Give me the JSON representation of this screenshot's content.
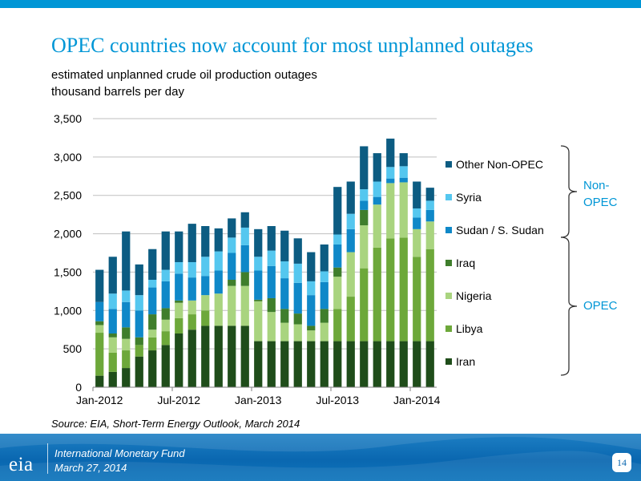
{
  "header": {
    "title": "OPEC countries now account for most unplanned outages",
    "subtitle_line1": "estimated unplanned crude oil production outages",
    "subtitle_line2": "thousand barrels per day"
  },
  "source": "Source: EIA, Short-Term Energy Outlook, March 2014",
  "footer": {
    "logo_text": "eia",
    "line1": "International Monetary Fund",
    "line2": "March 27, 2014",
    "page_number": "14"
  },
  "colors": {
    "accent": "#0096d6",
    "iran": "#1f4d1a",
    "libya": "#6da83a",
    "nigeria": "#a9d47f",
    "iraq": "#3f7e2c",
    "sudan": "#0f88c8",
    "syria": "#55c7ef",
    "other_non_opec": "#0c5c82",
    "bracket": "#333333",
    "group_label": "#0096d6"
  },
  "chart_data": {
    "type": "bar",
    "stacked": true,
    "categories": [
      "Jan-2012",
      "Feb-2012",
      "Mar-2012",
      "Apr-2012",
      "May-2012",
      "Jun-2012",
      "Jul-2012",
      "Aug-2012",
      "Sep-2012",
      "Oct-2012",
      "Nov-2012",
      "Dec-2012",
      "Jan-2013",
      "Feb-2013",
      "Mar-2013",
      "Apr-2013",
      "May-2013",
      "Jun-2013",
      "Jul-2013",
      "Aug-2013",
      "Sep-2013",
      "Oct-2013",
      "Nov-2013",
      "Dec-2013",
      "Jan-2014",
      "Feb-2014"
    ],
    "x_tick_labels": [
      "Jan-2012",
      "Jul-2012",
      "Jan-2013",
      "Jul-2013",
      "Jan-2014"
    ],
    "x_tick_indices": [
      0,
      6,
      12,
      18,
      24
    ],
    "ylim": [
      0,
      3500
    ],
    "y_ticks": [
      0,
      500,
      1000,
      1500,
      2000,
      2500,
      3000,
      3500
    ],
    "y_tick_labels": [
      "0",
      "500",
      "1,000",
      "1,500",
      "2,000",
      "2,500",
      "3,000",
      "3,500"
    ],
    "grid": true,
    "legend_position": "right",
    "series": [
      {
        "name": "Iran",
        "color_key": "iran",
        "values": [
          150,
          200,
          250,
          400,
          480,
          550,
          700,
          750,
          800,
          800,
          800,
          800,
          600,
          600,
          600,
          600,
          600,
          600,
          600,
          600,
          600,
          600,
          600,
          600,
          600,
          600
        ]
      },
      {
        "name": "Libya",
        "color_key": "libya",
        "values": [
          560,
          250,
          230,
          150,
          170,
          180,
          200,
          200,
          200,
          0,
          0,
          0,
          0,
          0,
          0,
          0,
          0,
          0,
          420,
          580,
          950,
          1220,
          1340,
          1350,
          1100,
          1200
        ]
      },
      {
        "name": "Nigeria",
        "color_key": "nigeria",
        "values": [
          100,
          200,
          150,
          0,
          100,
          150,
          200,
          180,
          200,
          420,
          520,
          520,
          520,
          380,
          240,
          220,
          140,
          240,
          420,
          580,
          560,
          560,
          720,
          720,
          360,
          360
        ]
      },
      {
        "name": "Iraq",
        "color_key": "iraq",
        "values": [
          50,
          50,
          150,
          100,
          200,
          150,
          30,
          0,
          0,
          0,
          80,
          180,
          20,
          180,
          180,
          140,
          60,
          180,
          120,
          0,
          200,
          0,
          0,
          0,
          0,
          0
        ]
      },
      {
        "name": "Sudan / S. Sudan",
        "color_key": "sudan",
        "values": [
          250,
          320,
          330,
          350,
          350,
          350,
          350,
          300,
          250,
          300,
          350,
          350,
          380,
          420,
          400,
          400,
          400,
          350,
          300,
          300,
          120,
          100,
          60,
          60,
          150,
          150
        ]
      },
      {
        "name": "Syria",
        "color_key": "syria",
        "values": [
          0,
          200,
          150,
          200,
          100,
          150,
          150,
          200,
          250,
          250,
          200,
          230,
          180,
          200,
          220,
          250,
          180,
          140,
          130,
          200,
          150,
          200,
          150,
          150,
          120,
          120
        ]
      },
      {
        "name": "Other Non-OPEC",
        "color_key": "other_non_opec",
        "values": [
          420,
          480,
          770,
          400,
          400,
          500,
          400,
          500,
          400,
          300,
          250,
          200,
          360,
          320,
          400,
          330,
          380,
          350,
          620,
          420,
          560,
          370,
          370,
          170,
          350,
          170
        ]
      }
    ],
    "legend_order": [
      "Other Non-OPEC",
      "Syria",
      "Sudan / S. Sudan",
      "Iraq",
      "Nigeria",
      "Libya",
      "Iran"
    ],
    "groups": [
      {
        "label": "Non-\nOPEC",
        "series": [
          "Other Non-OPEC",
          "Syria",
          "Sudan / S. Sudan"
        ]
      },
      {
        "label": "OPEC",
        "series": [
          "Iraq",
          "Nigeria",
          "Libya",
          "Iran"
        ]
      }
    ]
  }
}
